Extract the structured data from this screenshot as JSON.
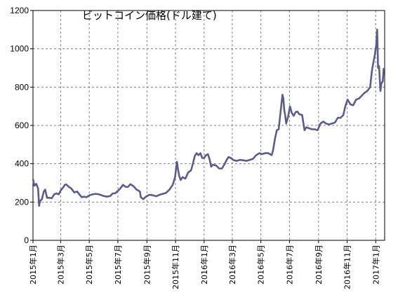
{
  "chart_data": {
    "type": "line",
    "title": "ビットコイン価格(ドル建て)",
    "xlabel": "",
    "ylabel": "",
    "ylim": [
      0,
      1200
    ],
    "y_ticks": [
      0,
      200,
      400,
      600,
      800,
      1000,
      1200
    ],
    "x_range": [
      "2015-01-01",
      "2017-01-20"
    ],
    "x_ticks": [
      {
        "date": "2015-01-01",
        "label": "2015年1月"
      },
      {
        "date": "2015-03-01",
        "label": "2015年3月"
      },
      {
        "date": "2015-05-01",
        "label": "2015年5月"
      },
      {
        "date": "2015-07-01",
        "label": "2015年7月"
      },
      {
        "date": "2015-09-01",
        "label": "2015年9月"
      },
      {
        "date": "2015-11-01",
        "label": "2015年11月"
      },
      {
        "date": "2016-01-01",
        "label": "2016年1月"
      },
      {
        "date": "2016-03-01",
        "label": "2016年3月"
      },
      {
        "date": "2016-05-01",
        "label": "2016年5月"
      },
      {
        "date": "2016-07-01",
        "label": "2016年7月"
      },
      {
        "date": "2016-09-01",
        "label": "2016年9月"
      },
      {
        "date": "2016-11-01",
        "label": "2016年11月"
      },
      {
        "date": "2017-01-01",
        "label": "2017年1月"
      }
    ],
    "grid": true,
    "series": [
      {
        "color": "#5c5c8a",
        "points": [
          [
            "2015-01-01",
            320
          ],
          [
            "2015-01-04",
            285
          ],
          [
            "2015-01-08",
            295
          ],
          [
            "2015-01-12",
            270
          ],
          [
            "2015-01-14",
            180
          ],
          [
            "2015-01-16",
            205
          ],
          [
            "2015-01-20",
            215
          ],
          [
            "2015-01-24",
            255
          ],
          [
            "2015-01-27",
            265
          ],
          [
            "2015-01-31",
            222
          ],
          [
            "2015-02-05",
            222
          ],
          [
            "2015-02-10",
            220
          ],
          [
            "2015-02-15",
            240
          ],
          [
            "2015-02-20",
            245
          ],
          [
            "2015-02-25",
            240
          ],
          [
            "2015-03-01",
            260
          ],
          [
            "2015-03-06",
            275
          ],
          [
            "2015-03-10",
            290
          ],
          [
            "2015-03-13",
            292
          ],
          [
            "2015-03-18",
            280
          ],
          [
            "2015-03-24",
            270
          ],
          [
            "2015-03-30",
            250
          ],
          [
            "2015-04-05",
            255
          ],
          [
            "2015-04-10",
            240
          ],
          [
            "2015-04-15",
            225
          ],
          [
            "2015-04-20",
            228
          ],
          [
            "2015-04-25",
            225
          ],
          [
            "2015-05-01",
            235
          ],
          [
            "2015-05-08",
            240
          ],
          [
            "2015-05-15",
            243
          ],
          [
            "2015-05-22",
            240
          ],
          [
            "2015-05-31",
            232
          ],
          [
            "2015-06-08",
            228
          ],
          [
            "2015-06-15",
            232
          ],
          [
            "2015-06-20",
            245
          ],
          [
            "2015-06-25",
            245
          ],
          [
            "2015-07-01",
            258
          ],
          [
            "2015-07-06",
            270
          ],
          [
            "2015-07-12",
            290
          ],
          [
            "2015-07-17",
            280
          ],
          [
            "2015-07-22",
            278
          ],
          [
            "2015-07-28",
            293
          ],
          [
            "2015-08-03",
            283
          ],
          [
            "2015-08-10",
            265
          ],
          [
            "2015-08-17",
            255
          ],
          [
            "2015-08-19",
            225
          ],
          [
            "2015-08-24",
            215
          ],
          [
            "2015-08-31",
            230
          ],
          [
            "2015-09-07",
            238
          ],
          [
            "2015-09-14",
            235
          ],
          [
            "2015-09-21",
            230
          ],
          [
            "2015-09-28",
            238
          ],
          [
            "2015-10-05",
            243
          ],
          [
            "2015-10-12",
            248
          ],
          [
            "2015-10-19",
            265
          ],
          [
            "2015-10-26",
            290
          ],
          [
            "2015-10-31",
            330
          ],
          [
            "2015-11-02",
            370
          ],
          [
            "2015-11-04",
            410
          ],
          [
            "2015-11-06",
            375
          ],
          [
            "2015-11-09",
            335
          ],
          [
            "2015-11-12",
            315
          ],
          [
            "2015-11-16",
            330
          ],
          [
            "2015-11-22",
            322
          ],
          [
            "2015-11-28",
            355
          ],
          [
            "2015-12-04",
            365
          ],
          [
            "2015-12-08",
            400
          ],
          [
            "2015-12-12",
            440
          ],
          [
            "2015-12-16",
            455
          ],
          [
            "2015-12-20",
            445
          ],
          [
            "2015-12-24",
            455
          ],
          [
            "2015-12-28",
            430
          ],
          [
            "2016-01-01",
            430
          ],
          [
            "2016-01-05",
            445
          ],
          [
            "2016-01-09",
            450
          ],
          [
            "2016-01-13",
            420
          ],
          [
            "2016-01-16",
            385
          ],
          [
            "2016-01-20",
            395
          ],
          [
            "2016-01-27",
            390
          ],
          [
            "2016-02-02",
            375
          ],
          [
            "2016-02-08",
            375
          ],
          [
            "2016-02-13",
            395
          ],
          [
            "2016-02-18",
            420
          ],
          [
            "2016-02-22",
            435
          ],
          [
            "2016-02-27",
            430
          ],
          [
            "2016-03-03",
            420
          ],
          [
            "2016-03-10",
            415
          ],
          [
            "2016-03-17",
            420
          ],
          [
            "2016-03-24",
            418
          ],
          [
            "2016-03-31",
            415
          ],
          [
            "2016-04-07",
            420
          ],
          [
            "2016-04-14",
            425
          ],
          [
            "2016-04-21",
            445
          ],
          [
            "2016-04-28",
            455
          ],
          [
            "2016-05-03",
            450
          ],
          [
            "2016-05-10",
            455
          ],
          [
            "2016-05-17",
            455
          ],
          [
            "2016-05-24",
            445
          ],
          [
            "2016-05-27",
            470
          ],
          [
            "2016-05-31",
            530
          ],
          [
            "2016-06-04",
            575
          ],
          [
            "2016-06-08",
            580
          ],
          [
            "2016-06-12",
            670
          ],
          [
            "2016-06-16",
            760
          ],
          [
            "2016-06-18",
            740
          ],
          [
            "2016-06-20",
            680
          ],
          [
            "2016-06-22",
            650
          ],
          [
            "2016-06-24",
            610
          ],
          [
            "2016-06-28",
            645
          ],
          [
            "2016-07-02",
            700
          ],
          [
            "2016-07-06",
            665
          ],
          [
            "2016-07-10",
            650
          ],
          [
            "2016-07-14",
            670
          ],
          [
            "2016-07-18",
            672
          ],
          [
            "2016-07-22",
            658
          ],
          [
            "2016-07-28",
            655
          ],
          [
            "2016-08-02",
            575
          ],
          [
            "2016-08-06",
            590
          ],
          [
            "2016-08-12",
            585
          ],
          [
            "2016-08-18",
            580
          ],
          [
            "2016-08-24",
            580
          ],
          [
            "2016-08-30",
            575
          ],
          [
            "2016-09-05",
            610
          ],
          [
            "2016-09-11",
            620
          ],
          [
            "2016-09-17",
            610
          ],
          [
            "2016-09-23",
            605
          ],
          [
            "2016-09-30",
            610
          ],
          [
            "2016-10-06",
            615
          ],
          [
            "2016-10-12",
            640
          ],
          [
            "2016-10-18",
            640
          ],
          [
            "2016-10-24",
            655
          ],
          [
            "2016-10-28",
            700
          ],
          [
            "2016-11-02",
            735
          ],
          [
            "2016-11-08",
            710
          ],
          [
            "2016-11-14",
            705
          ],
          [
            "2016-11-20",
            735
          ],
          [
            "2016-11-26",
            740
          ],
          [
            "2016-12-02",
            755
          ],
          [
            "2016-12-08",
            770
          ],
          [
            "2016-12-14",
            780
          ],
          [
            "2016-12-20",
            800
          ],
          [
            "2016-12-24",
            890
          ],
          [
            "2016-12-27",
            930
          ],
          [
            "2016-12-30",
            970
          ],
          [
            "2017-01-02",
            1020
          ],
          [
            "2017-01-04",
            1100
          ],
          [
            "2017-01-06",
            900
          ],
          [
            "2017-01-08",
            910
          ],
          [
            "2017-01-11",
            780
          ],
          [
            "2017-01-13",
            820
          ],
          [
            "2017-01-16",
            830
          ],
          [
            "2017-01-18",
            900
          ]
        ]
      }
    ]
  }
}
